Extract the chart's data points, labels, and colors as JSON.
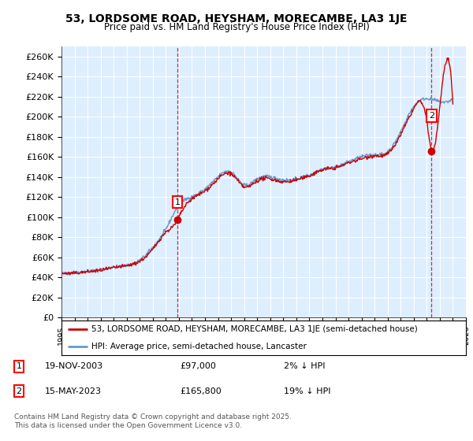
{
  "title": "53, LORDSOME ROAD, HEYSHAM, MORECAMBE, LA3 1JE",
  "subtitle": "Price paid vs. HM Land Registry's House Price Index (HPI)",
  "ylim": [
    0,
    270000
  ],
  "yticks": [
    0,
    20000,
    40000,
    60000,
    80000,
    100000,
    120000,
    140000,
    160000,
    180000,
    200000,
    220000,
    240000,
    260000
  ],
  "ytick_labels": [
    "£0",
    "£20K",
    "£40K",
    "£60K",
    "£80K",
    "£100K",
    "£120K",
    "£140K",
    "£160K",
    "£180K",
    "£200K",
    "£220K",
    "£240K",
    "£260K"
  ],
  "hpi_color": "#6699cc",
  "price_color": "#cc0000",
  "bg_color": "#ffffff",
  "plot_bg_color": "#ddeeff",
  "grid_color": "#ffffff",
  "legend_label_price": "53, LORDSOME ROAD, HEYSHAM, MORECAMBE, LA3 1JE (semi-detached house)",
  "legend_label_hpi": "HPI: Average price, semi-detached house, Lancaster",
  "annotation1_label": "1",
  "annotation1_date": "19-NOV-2003",
  "annotation1_price": "£97,000",
  "annotation1_pct": "2% ↓ HPI",
  "annotation2_label": "2",
  "annotation2_date": "15-MAY-2023",
  "annotation2_price": "£165,800",
  "annotation2_pct": "19% ↓ HPI",
  "copyright": "Contains HM Land Registry data © Crown copyright and database right 2025.\nThis data is licensed under the Open Government Licence v3.0.",
  "sale1_x": 2003.89,
  "sale1_y": 97000,
  "sale2_x": 2023.37,
  "sale2_y": 165800,
  "xmin": 1995,
  "xmax": 2026
}
